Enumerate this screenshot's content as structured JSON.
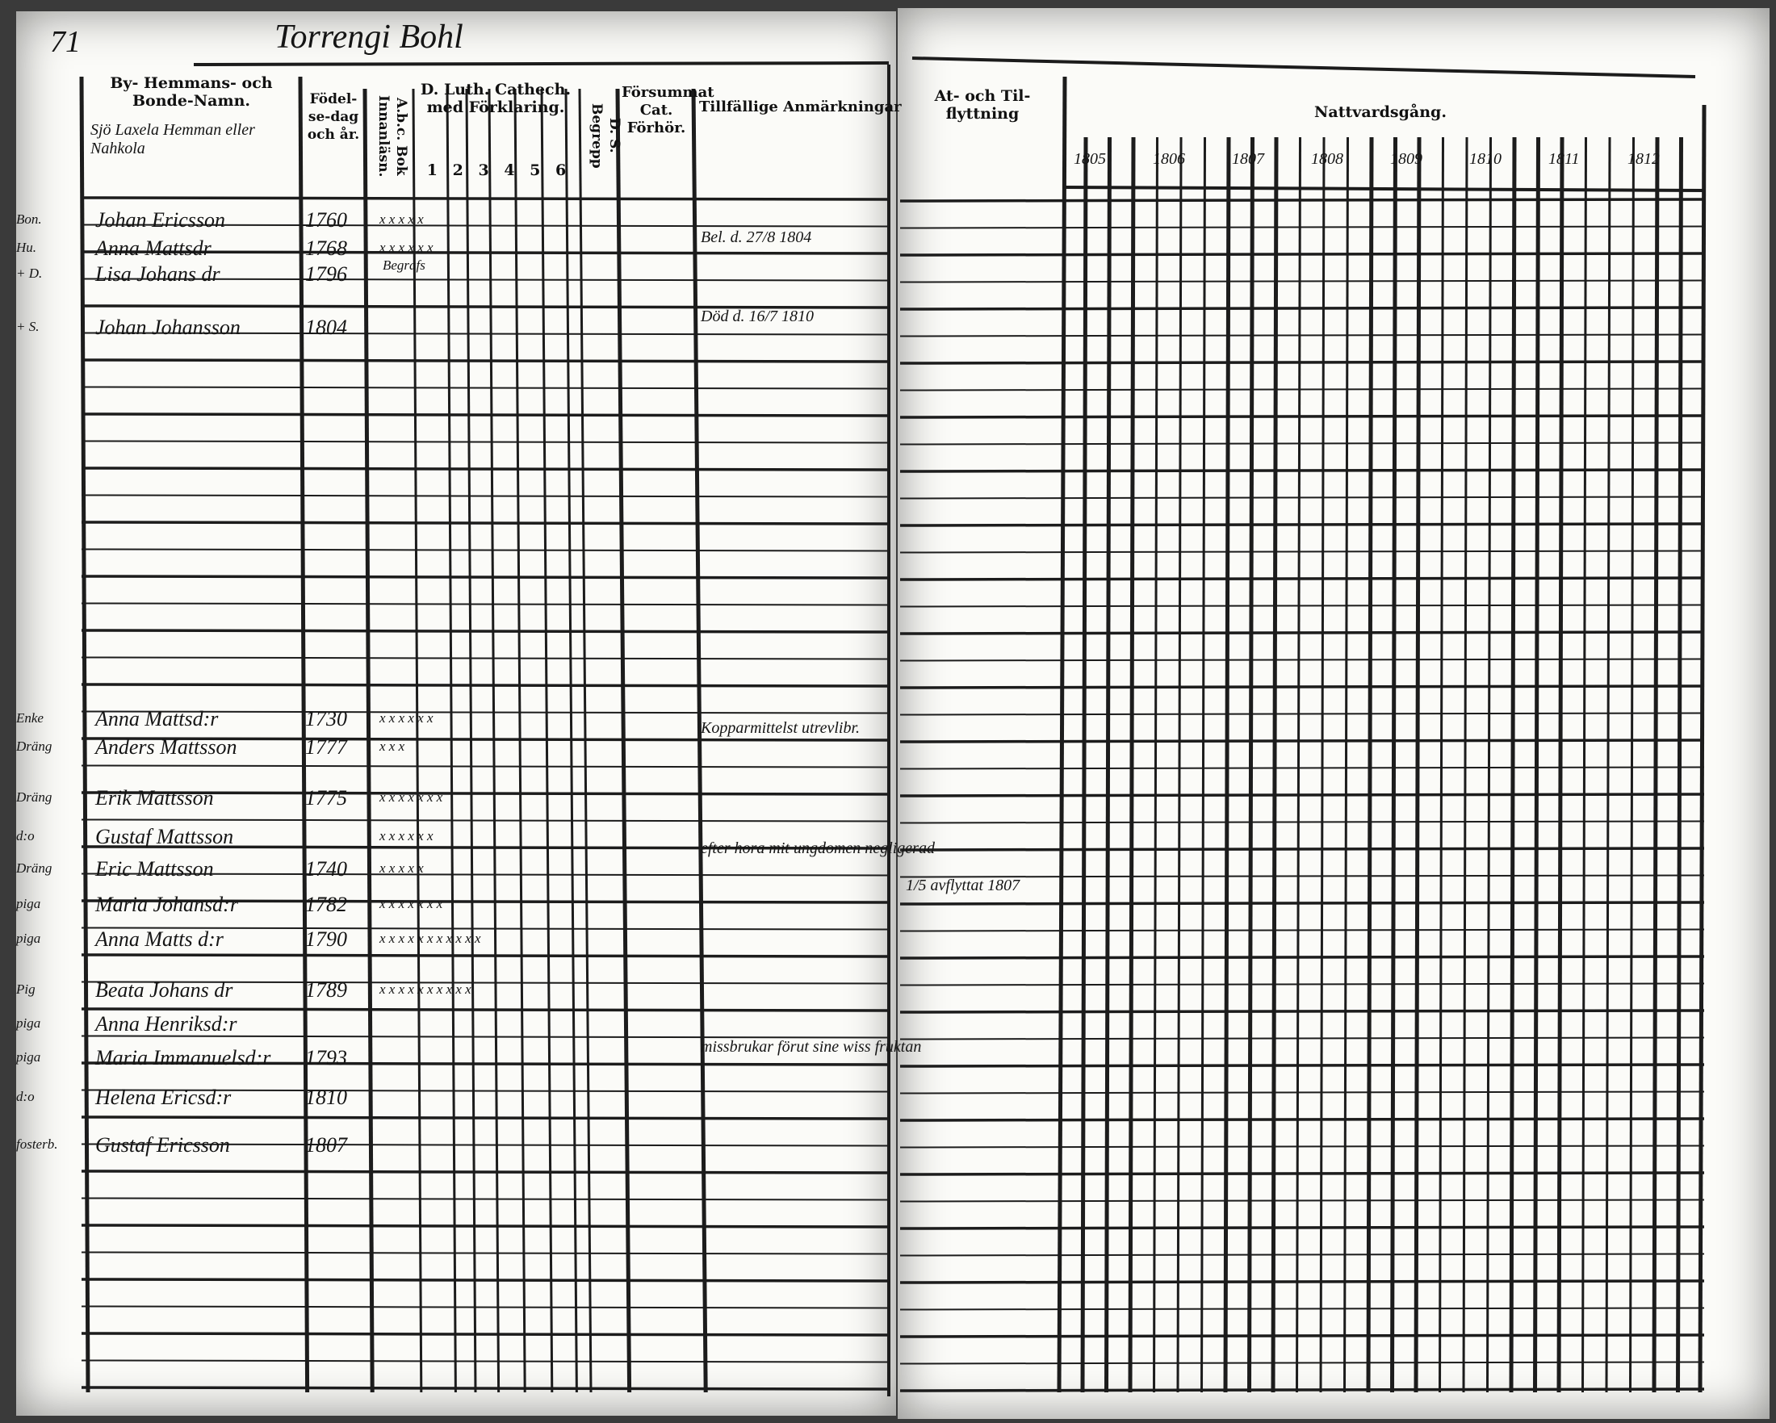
{
  "page_number": "71",
  "title": "Torrengi Bohl",
  "headers": {
    "name_col": "By- Hemmans- och Bonde-Namn.",
    "birth_col": "Födel-se-dag och år.",
    "abc_col": "A.b.c. Bok Innanläsn.",
    "catech_col": "D. Luth. Cathech. med Förklaring.",
    "catech_nums": [
      "1",
      "2",
      "3",
      "4",
      "5",
      "6"
    ],
    "begrepp_col": "D. S. Begrepp",
    "forsummat_col": "Försummat Cat. Förhör.",
    "remarks_col": "Tillfällige Anmärkningar",
    "moving_col": "At- och Til-flyttning",
    "communion_col": "Nattvardsgång."
  },
  "farm_name": "Sjö Laxela Hemman eller Nahkola",
  "communion_years": [
    "1805",
    "1806",
    "1807",
    "1808",
    "1809",
    "1810",
    "1811",
    "1812"
  ],
  "persons": [
    {
      "role": "Bon.",
      "name": "Johan Ericsson",
      "birth": "1760",
      "marks": "x x x x x"
    },
    {
      "role": "Hu.",
      "name": "Anna Mattsdr",
      "birth": "1768",
      "marks": "x x x x x x",
      "remark": "Bel. d. 27/8 1804",
      "abc": "Begrafs"
    },
    {
      "role": "+ D.",
      "name": "Lisa Johans dr",
      "birth": "1796"
    },
    {
      "role": "+ S.",
      "name": "Johan Johansson",
      "birth": "1804",
      "remark": "Död d. 16/7 1810"
    },
    {
      "role": "Enke",
      "name": "Anna Mattsd:r",
      "birth": "1730",
      "marks": "x x x x x x"
    },
    {
      "role": "Dräng",
      "name": "Anders Mattsson",
      "birth": "1777",
      "marks": "x x x",
      "remark": "Kopparmittelst utrevlibr."
    },
    {
      "role": "Dräng",
      "name": "Erik Mattsson",
      "birth": "1775",
      "marks": "x x x x x x x"
    },
    {
      "role": "d:o",
      "name": "Gustaf Mattsson",
      "birth": "",
      "marks": "x x x x x x"
    },
    {
      "role": "Dräng",
      "name": "Eric Mattsson",
      "birth": "1740",
      "marks": "x x x x x",
      "remark": "efter hora mit ungdomen negligerad",
      "moving": "1/5 avflyttat 1807"
    },
    {
      "role": "piga",
      "name": "Maria Johansd:r",
      "birth": "1782",
      "marks": "x x x x x x x"
    },
    {
      "role": "piga",
      "name": "Anna Matts d:r",
      "birth": "1790",
      "marks": "x x x x x x x x x x x"
    },
    {
      "role": "Pig",
      "name": "Beata Johans dr",
      "birth": "1789",
      "marks": "x x x x x x x x x x"
    },
    {
      "role": "piga",
      "name": "Anna Henriksd:r",
      "birth": ""
    },
    {
      "role": "piga",
      "name": "Maria Immanuelsd:r",
      "birth": "1793",
      "remark": "missbrukar förut sine wiss fruktan"
    },
    {
      "role": "d:o",
      "name": "Helena Ericsd:r",
      "birth": "1810"
    },
    {
      "role": "fosterb.",
      "name": "Gustaf Ericsson",
      "birth": "1807"
    }
  ],
  "colors": {
    "paper": "#fbfbf8",
    "ink": "#151515",
    "border": "#3a3a3a"
  }
}
